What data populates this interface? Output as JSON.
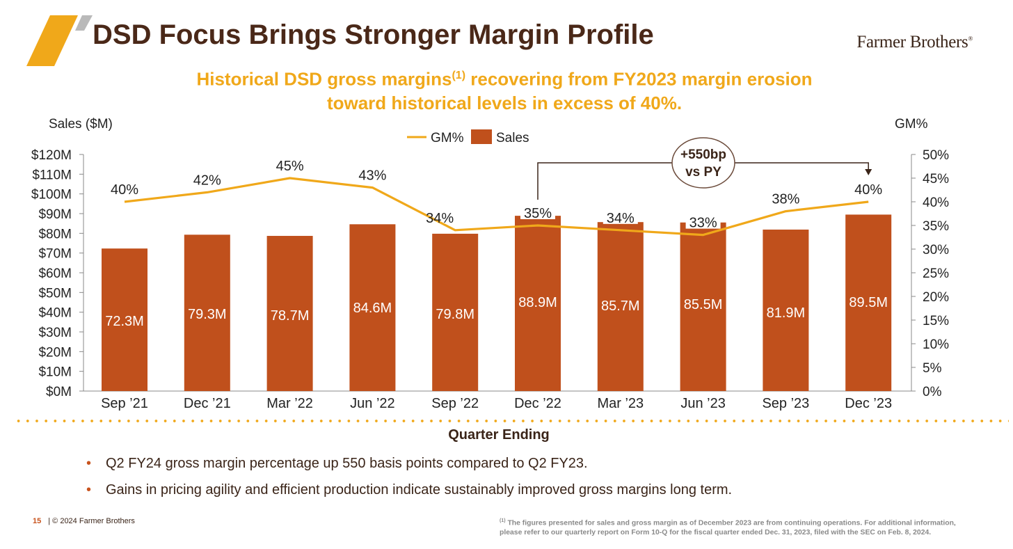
{
  "header": {
    "title": "DSD Focus Brings Stronger Margin Profile",
    "brand": "Farmer Brothers",
    "brand_mark": "®",
    "subtitle_part1": "Historical DSD gross margins",
    "subtitle_sup": "(1)",
    "subtitle_part2": " recovering from FY2023 margin erosion",
    "subtitle_line2": "toward historical levels in excess of 40%.",
    "accent_color": "#f0a81a",
    "title_color": "#4a2818",
    "logo_icon": "orange-slash-logo-icon"
  },
  "chart_data": {
    "type": "bar",
    "categories": [
      "Sep ’21",
      "Dec ’21",
      "Mar ’22",
      "Jun ’22",
      "Sep ’22",
      "Dec ’22",
      "Mar ’23",
      "Jun ’23",
      "Sep ’23",
      "Dec ’23"
    ],
    "series": [
      {
        "name": "Sales",
        "type": "bar",
        "axis": "left",
        "color": "#c0501c",
        "values": [
          72.3,
          79.3,
          78.7,
          84.6,
          79.8,
          88.9,
          85.7,
          85.5,
          81.9,
          89.5
        ],
        "labels": [
          "72.3M",
          "79.3M",
          "78.7M",
          "84.6M",
          "79.8M",
          "88.9M",
          "85.7M",
          "85.5M",
          "81.9M",
          "89.5M"
        ]
      },
      {
        "name": "GM%",
        "type": "line",
        "axis": "right",
        "color": "#f0a81a",
        "values": [
          40,
          42,
          45,
          43,
          34,
          35,
          34,
          33,
          38,
          40
        ],
        "labels": [
          "40%",
          "42%",
          "45%",
          "43%",
          "34%",
          "35%",
          "34%",
          "33%",
          "38%",
          "40%"
        ]
      }
    ],
    "ylabel": "Sales ($M)",
    "y2label": "GM%",
    "xlabel": "Quarter Ending",
    "ylim": [
      0,
      120
    ],
    "y2lim": [
      0,
      50
    ],
    "yticks": [
      "$0M",
      "$10M",
      "$20M",
      "$30M",
      "$40M",
      "$50M",
      "$60M",
      "$70M",
      "$80M",
      "$90M",
      "$100M",
      "$110M",
      "$120M"
    ],
    "y2ticks": [
      "0%",
      "5%",
      "10%",
      "15%",
      "20%",
      "25%",
      "30%",
      "35%",
      "40%",
      "45%",
      "50%"
    ],
    "legend_position": "top-center",
    "grid": false,
    "annotation": {
      "line1": "+550bp",
      "line2": "vs PY",
      "from_category": "Dec ’22",
      "to_category": "Dec ’23"
    }
  },
  "bullets": [
    "Q2 FY24 gross margin percentage up 550 basis points compared to Q2 FY23.",
    "Gains in pricing agility and efficient production indicate sustainably improved gross margins long term."
  ],
  "bullet_glyph": "•",
  "footer": {
    "page_number": "15",
    "copyright": "| © 2024 Farmer Brothers",
    "footnote_sup": "(1)",
    "footnote_line1": " The figures presented for sales and gross margin as of December 2023 are from continuing operations. For additional information,",
    "footnote_line2": "please refer to our quarterly report on Form 10-Q for the fiscal quarter ended Dec. 31, 2023, filed with the SEC on Feb. 8, 2024."
  }
}
